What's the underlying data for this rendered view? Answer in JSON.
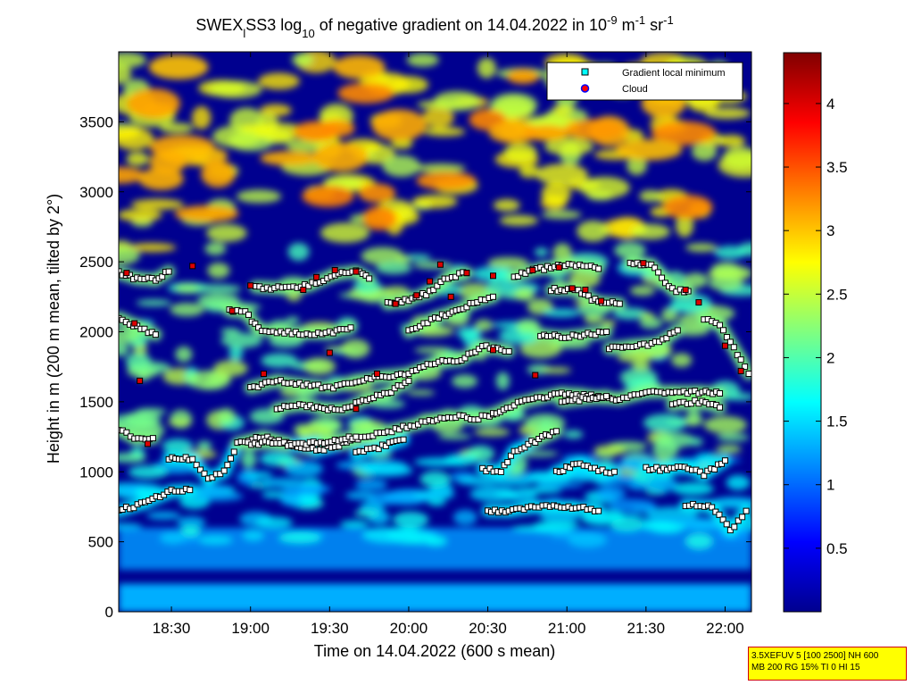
{
  "chart_data": {
    "type": "heatmap",
    "title": {
      "parts": [
        {
          "text": "SWEX",
          "style": "normal"
        },
        {
          "text": "l",
          "style": "sub"
        },
        {
          "text": "SS3 log",
          "style": "normal"
        },
        {
          "text": "10",
          "style": "sub"
        },
        {
          "text": " of negative gradient on 14.04.2022 in 10",
          "style": "normal"
        },
        {
          "text": "-9",
          "style": "sup"
        },
        {
          "text": " m",
          "style": "normal"
        },
        {
          "text": "-1",
          "style": "sup"
        },
        {
          "text": " sr",
          "style": "normal"
        },
        {
          "text": "-1",
          "style": "sup"
        }
      ]
    },
    "xlabel": "Time on 14.04.2022 (600 s mean)",
    "ylabel": "Height in m (200 m mean, tilted by 2°)",
    "x_range_minutes": [
      1090,
      1330
    ],
    "y_range_m": [
      0,
      4000
    ],
    "x_ticks": [
      {
        "label": "18:30",
        "minutes": 1110
      },
      {
        "label": "19:00",
        "minutes": 1140
      },
      {
        "label": "19:30",
        "minutes": 1170
      },
      {
        "label": "20:00",
        "minutes": 1200
      },
      {
        "label": "20:30",
        "minutes": 1230
      },
      {
        "label": "21:00",
        "minutes": 1260
      },
      {
        "label": "21:30",
        "minutes": 1290
      },
      {
        "label": "22:00",
        "minutes": 1320
      }
    ],
    "y_ticks": [
      0,
      500,
      1000,
      1500,
      2000,
      2500,
      3000,
      3500
    ],
    "colorbar": {
      "range": [
        0,
        4.4
      ],
      "ticks": [
        "0.5",
        "1",
        "1.5",
        "2",
        "2.5",
        "3",
        "3.5",
        "4"
      ],
      "colormap": "jet"
    },
    "legend": {
      "placement": "top-right",
      "entries": [
        {
          "label": "Gradient local minimum",
          "marker": "square",
          "color": "#00ffff"
        },
        {
          "label": "Cloud",
          "marker": "circle",
          "color": "#ff0000",
          "edge": "#0000ff"
        }
      ]
    },
    "gradient_minima_layers": [
      {
        "points": [
          [
            1090,
            720
          ],
          [
            1100,
            780
          ],
          [
            1110,
            860
          ],
          [
            1117,
            870
          ]
        ]
      },
      {
        "points": [
          [
            1090,
            1300
          ],
          [
            1096,
            1240
          ],
          [
            1103,
            1240
          ]
        ]
      },
      {
        "points": [
          [
            1109,
            1100
          ],
          [
            1118,
            1090
          ],
          [
            1124,
            950
          ],
          [
            1130,
            1000
          ],
          [
            1135,
            1200
          ],
          [
            1145,
            1250
          ],
          [
            1155,
            1200
          ],
          [
            1165,
            1150
          ],
          [
            1175,
            1200
          ],
          [
            1185,
            1260
          ],
          [
            1195,
            1300
          ],
          [
            1205,
            1350
          ],
          [
            1215,
            1400
          ],
          [
            1225,
            1380
          ],
          [
            1232,
            1410
          ]
        ]
      },
      {
        "points": [
          [
            1139,
            1200
          ],
          [
            1147,
            1210
          ],
          [
            1157,
            1190
          ],
          [
            1168,
            1210
          ],
          [
            1180,
            1250
          ]
        ]
      },
      {
        "points": [
          [
            1228,
            1020
          ],
          [
            1235,
            1000
          ],
          [
            1240,
            1150
          ],
          [
            1248,
            1220
          ],
          [
            1256,
            1290
          ]
        ]
      },
      {
        "points": [
          [
            1232,
            1410
          ],
          [
            1240,
            1480
          ],
          [
            1250,
            1530
          ],
          [
            1258,
            1560
          ],
          [
            1265,
            1550
          ],
          [
            1272,
            1530
          ],
          [
            1280,
            1520
          ],
          [
            1290,
            1570
          ],
          [
            1300,
            1570
          ],
          [
            1310,
            1570
          ],
          [
            1318,
            1560
          ]
        ]
      },
      {
        "points": [
          [
            1256,
            1000
          ],
          [
            1265,
            1060
          ],
          [
            1272,
            1010
          ],
          [
            1278,
            1000
          ]
        ]
      },
      {
        "points": [
          [
            1290,
            1020
          ],
          [
            1298,
            1020
          ],
          [
            1306,
            1030
          ],
          [
            1312,
            980
          ],
          [
            1320,
            1080
          ]
        ]
      },
      {
        "points": [
          [
            1230,
            720
          ],
          [
            1238,
            720
          ],
          [
            1248,
            750
          ],
          [
            1262,
            750
          ],
          [
            1272,
            720
          ]
        ]
      },
      {
        "points": [
          [
            1305,
            760
          ],
          [
            1315,
            750
          ],
          [
            1322,
            580
          ],
          [
            1328,
            720
          ]
        ]
      },
      {
        "points": [
          [
            1090,
            2100
          ],
          [
            1097,
            2040
          ],
          [
            1104,
            1980
          ]
        ]
      },
      {
        "points": [
          [
            1090,
            2420
          ],
          [
            1097,
            2380
          ],
          [
            1104,
            2370
          ],
          [
            1109,
            2430
          ]
        ]
      },
      {
        "points": [
          [
            1132,
            2150
          ],
          [
            1138,
            2140
          ],
          [
            1143,
            2020
          ],
          [
            1150,
            2000
          ],
          [
            1160,
            1990
          ],
          [
            1170,
            1990
          ],
          [
            1178,
            2030
          ]
        ]
      },
      {
        "points": [
          [
            1142,
            2320
          ],
          [
            1152,
            2310
          ],
          [
            1162,
            2330
          ],
          [
            1172,
            2410
          ],
          [
            1180,
            2430
          ],
          [
            1185,
            2380
          ]
        ]
      },
      {
        "points": [
          [
            1140,
            1600
          ],
          [
            1150,
            1650
          ],
          [
            1160,
            1620
          ],
          [
            1170,
            1600
          ],
          [
            1180,
            1650
          ],
          [
            1190,
            1680
          ],
          [
            1200,
            1700
          ],
          [
            1210,
            1780
          ],
          [
            1220,
            1800
          ],
          [
            1228,
            1900
          ],
          [
            1238,
            1860
          ]
        ]
      },
      {
        "points": [
          [
            1150,
            1450
          ],
          [
            1160,
            1480
          ],
          [
            1168,
            1450
          ],
          [
            1176,
            1450
          ],
          [
            1184,
            1520
          ],
          [
            1192,
            1560
          ],
          [
            1200,
            1650
          ]
        ]
      },
      {
        "points": [
          [
            1180,
            1130
          ],
          [
            1190,
            1180
          ],
          [
            1198,
            1230
          ]
        ]
      },
      {
        "points": [
          [
            1192,
            2200
          ],
          [
            1200,
            2230
          ],
          [
            1208,
            2280
          ],
          [
            1215,
            2390
          ],
          [
            1222,
            2420
          ]
        ]
      },
      {
        "points": [
          [
            1200,
            2000
          ],
          [
            1210,
            2100
          ],
          [
            1218,
            2150
          ],
          [
            1226,
            2220
          ],
          [
            1232,
            2250
          ]
        ]
      },
      {
        "points": [
          [
            1250,
            1980
          ],
          [
            1258,
            1960
          ],
          [
            1268,
            1980
          ],
          [
            1275,
            2000
          ]
        ]
      },
      {
        "points": [
          [
            1254,
            2300
          ],
          [
            1263,
            2300
          ],
          [
            1272,
            2210
          ],
          [
            1280,
            2200
          ]
        ]
      },
      {
        "points": [
          [
            1258,
            1500
          ],
          [
            1266,
            1520
          ],
          [
            1275,
            1540
          ]
        ]
      },
      {
        "points": [
          [
            1276,
            1880
          ],
          [
            1285,
            1900
          ],
          [
            1295,
            1920
          ],
          [
            1302,
            2010
          ]
        ]
      },
      {
        "points": [
          [
            1284,
            2490
          ],
          [
            1292,
            2480
          ],
          [
            1300,
            2300
          ],
          [
            1306,
            2290
          ]
        ]
      },
      {
        "points": [
          [
            1312,
            2090
          ],
          [
            1318,
            2050
          ],
          [
            1326,
            1800
          ],
          [
            1329,
            1700
          ]
        ]
      },
      {
        "points": [
          [
            1240,
            2400
          ],
          [
            1250,
            2450
          ],
          [
            1262,
            2480
          ],
          [
            1272,
            2450
          ]
        ]
      },
      {
        "points": [
          [
            1300,
            1480
          ],
          [
            1310,
            1500
          ],
          [
            1318,
            1460
          ]
        ]
      }
    ],
    "cloud_points": [
      [
        1093,
        2420
      ],
      [
        1096,
        2060
      ],
      [
        1098,
        1650
      ],
      [
        1101,
        1200
      ],
      [
        1118,
        2470
      ],
      [
        1133,
        2150
      ],
      [
        1140,
        2330
      ],
      [
        1145,
        1700
      ],
      [
        1160,
        2300
      ],
      [
        1165,
        2390
      ],
      [
        1170,
        1850
      ],
      [
        1172,
        2440
      ],
      [
        1180,
        2430
      ],
      [
        1188,
        1700
      ],
      [
        1195,
        2200
      ],
      [
        1203,
        2260
      ],
      [
        1208,
        2360
      ],
      [
        1212,
        2480
      ],
      [
        1222,
        2420
      ],
      [
        1232,
        2400
      ],
      [
        1232,
        1870
      ],
      [
        1247,
        2440
      ],
      [
        1257,
        2460
      ],
      [
        1262,
        2310
      ],
      [
        1267,
        2300
      ],
      [
        1273,
        2220
      ],
      [
        1289,
        2490
      ],
      [
        1305,
        2300
      ],
      [
        1310,
        2210
      ],
      [
        1320,
        1900
      ],
      [
        1326,
        1720
      ],
      [
        1248,
        1690
      ],
      [
        1180,
        1450
      ],
      [
        1216,
        2250
      ]
    ]
  },
  "info_box": {
    "line1": "3.5XEFUV 5 [100 2500] NH 600",
    "line2": "MB 200 RG 15% TI 0 HI 15"
  }
}
